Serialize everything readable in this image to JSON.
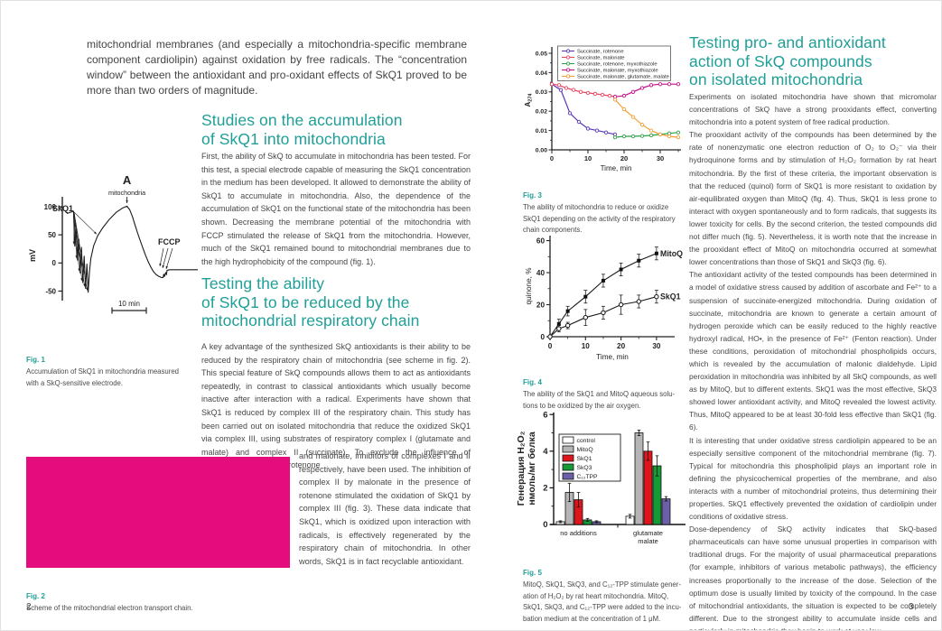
{
  "accent_teal": "#1f9f97",
  "fig2_pink": "#e50c7e",
  "left_page": {
    "intro": "mitochondrial membranes (and especially a mitochondria-specific membrane component cardiolipin) against oxidation by free radicals. The “concentration window” between the antioxidant and pro-oxidant effects of SkQ1 proved to be more than two orders of magnitude.",
    "section1_title": "Studies on the accumulation\nof SkQ1 into mitochondria",
    "section1_body": "First, the ability of SkQ to accumulate in mitochondria has been tested. For this test, a special electrode capable of measuring the SkQ1 concentration in the medium has been developed. It allowed to demonstrate the ability of SkQ1 to accumulate in mitochondria. Also, the dependence of the accumulation of SkQ1 on the functional state of the mitochondria has been shown. Decreasing the membrane potential of the mitochondria with FCCP stimulated the release of SkQ1 from the mitochondria. However, much of the SkQ1 remained bound to mitochondrial membranes due to the high hydrophobicity of the compound (fig. 1).",
    "section2_title": "Testing the ability\nof SkQ1 to be reduced by the\nmitochondrial respiratory chain",
    "section2_body_top": "A key advantage of the synthesized SkQ antioxidants is their ability to be reduced by the respiratory chain of mitochondria (see scheme in fig. 2). This special feature of SkQ compounds allows them to act as antioxidants repeatedly, in contrast to classical antioxidants which usually become inactive after interaction with a radical. Experiments have shown that SkQ1 is reduced by complex III of the respiratory chain. This study has been carried out on isolated mitochondria that reduce the oxidized SkQ1 via complex III, using substrates of respiratory complex I (glutamate and malate) and complex II (succinate). To exclude the influence of endogenous substrates rotenone",
    "section2_body_wrap": "and malonate, inhibitors of complexes I and II respectively, have been used. The inhibition of complex II by malonate in the presence of rotenone stimulated the oxidation of SkQ1 by complex III (fig. 3). These data indicate that SkQ1, which is oxidized upon interaction with radicals, is effectively regenerated by the respiratory chain of mitochondria. In other words, SkQ1 is in fact recyclable antioxidant.",
    "fig1_label": "Fig. 1",
    "fig1_caption": "Accumulation of SkQ1 in mitochondria measured\nwith a SkQ-sensitive electrode.",
    "fig2_label": "Fig. 2",
    "fig2_caption": "Scheme of the mitochondrial electron transport chain.",
    "page_number": "2"
  },
  "right_page": {
    "section3_title": "Testing pro- and antioxidant\naction of SkQ compounds\non isolated mitochondria",
    "section3_paragraphs": [
      "Experiments on isolated mitochondria have shown that micromolar concentrations of SkQ have a strong prooxidants effect, converting mitochondria into a potent system of free radical production.",
      "The prooxidant activity of the compounds has been determined by the rate of nonenzymatic one electron reduction of O₂ to O₂⁻ via their hydroquinone forms and by stimulation of H₂O₂ formation by rat heart mitochondria. By the first of these criteria, the important observation is that the reduced (quinol) form of SkQ1 is more resistant to oxidation by air-equilibrated oxygen than MitoQ (fig. 4). Thus, SkQ1 is less prone to interact with oxygen spontaneously and to form radicals, that suggests its lower toxicity for cells. By the second criterion, the tested compounds did not differ much (fig. 5). Nevertheless, it is worth note that the increase in the prooxidant effect of MitoQ on mitochondria occurred at somewhat lower concentrations than those of SkQ1 and SkQ3 (fig. 6).",
      "The antioxidant activity of the tested compounds has been determined in a model of oxidative stress caused by addition of ascorbate and Fe²⁺ to a suspension of succinate-energized mitochondria. During oxidation of succinate, mitochondria are known to generate a certain amount of hydrogen peroxide which can be easily reduced to the highly reactive hydroxyl radical, HO•, in the presence of Fe²⁺ (Fenton reaction). Under these conditions, peroxidation of mitochondrial phospholipids occurs, which is revealed by the accumulation of malonic dialdehyde. Lipid peroxidation in mitochondria was inhibited by all SkQ compounds, as well as by MitoQ, but to different extents. SkQ1 was the most effective, SkQ3 showed lower antioxidant activity, and MitoQ revealed the lowest activity. Thus, MitoQ appeared to be at least 30-fold less effective than SkQ1 (fig. 6).",
      "It is interesting that under oxidative stress cardiolipin appeared to be an especially sensitive component of the mitochondrial membrane (fig. 7). Typical for mitochondria this phospholipid plays an important role in defining the physicochemical properties of the membrane, and also interacts with a number of mitochondrial proteins, thus determining their properties. SkQ1 effectively prevented the oxidation of cardiolipin under conditions of oxidative stress.",
      "Dose-dependency of SkQ activity indicates that SkQ-based pharmaceuticals can have some unusual properties in comparison with traditional drugs. For the majority of usual pharmaceutical preparations (for example, inhibitors of various metabolic pathways), the efficiency increases proportionally to the increase of the dose. Selection of the optimum dose is usually limited by toxicity of the compound. In the case of mitochondrial antioxidants, the situation is expected to be completely different. Due to the strongest ability to accumulate inside cells and particularly in mitochondria they begin to work at very low"
    ],
    "fig3_label": "Fig. 3",
    "fig3_caption": "The ability of mitochondria to reduce or oxidize\nSkQ1 depending on the activity of the respiratory\nchain components.",
    "fig4_label": "Fig. 4",
    "fig4_caption": "The ability of the SkQ1 and MitoQ aqueous solu-\ntions to be oxidized by the air oxygen.",
    "fig5_label": "Fig. 5",
    "fig5_caption": "MitoQ, SkQ1, SkQ3, and C₁₂-TPP stimulate gener-\nation of H₂O₂ by rat heart mitochondria. MitoQ,\nSkQ1, SkQ3, and C₁₂-TPP were added to the incu-\nbation medium at the concentration of 1 μM.",
    "page_number": "3"
  },
  "chart_data": [
    {
      "id": "fig1",
      "type": "line",
      "panel_label": "A",
      "ylabel": "mV",
      "yticks": [
        100,
        50,
        0,
        -50
      ],
      "annotations": [
        "SkQ1",
        "mitochondria",
        "FCCP",
        "10 min"
      ],
      "trace_mV": [
        [
          2,
          88
        ],
        [
          7,
          92
        ],
        [
          8,
          30
        ],
        [
          9,
          60
        ],
        [
          10,
          5
        ],
        [
          11,
          42
        ],
        [
          12,
          -18
        ],
        [
          13,
          28
        ],
        [
          14,
          -35
        ],
        [
          15,
          12
        ],
        [
          16,
          -45
        ],
        [
          17,
          -2
        ],
        [
          18,
          -52
        ],
        [
          19,
          -15
        ],
        [
          20,
          8
        ],
        [
          22,
          30
        ],
        [
          25,
          48
        ],
        [
          29,
          63
        ],
        [
          34,
          78
        ],
        [
          39,
          90
        ],
        [
          44,
          98
        ],
        [
          47,
          101
        ],
        [
          49,
          95
        ],
        [
          51,
          83
        ],
        [
          53,
          68
        ],
        [
          55,
          53
        ],
        [
          57,
          39
        ],
        [
          59,
          26
        ],
        [
          61,
          13
        ],
        [
          63,
          2
        ],
        [
          65,
          -8
        ],
        [
          67,
          -16
        ],
        [
          69,
          -21
        ],
        [
          71,
          -24
        ],
        [
          73,
          -26
        ],
        [
          74,
          -26
        ],
        [
          74.5,
          -20
        ],
        [
          75,
          -24
        ],
        [
          76,
          -17
        ],
        [
          76.5,
          -21
        ],
        [
          77,
          -13
        ],
        [
          79,
          -12
        ],
        [
          100,
          -12
        ]
      ],
      "spike_tips_mV": [
        [
          8,
          30
        ],
        [
          10,
          5
        ],
        [
          12,
          -18
        ],
        [
          14,
          -35
        ],
        [
          16,
          -45
        ],
        [
          18,
          -52
        ],
        [
          25,
          48
        ]
      ],
      "mito_addition_x": 47
    },
    {
      "id": "fig3",
      "type": "line",
      "ylabel": "A274",
      "xlabel": "Time, min",
      "xticks": [
        0,
        10,
        20,
        30
      ],
      "yticks": [
        0,
        0.01,
        0.02,
        0.03,
        0.04,
        0.05
      ],
      "xlim": [
        0,
        35
      ],
      "ylim": [
        0,
        0.05
      ],
      "legend_position": "top",
      "series": [
        {
          "name": "Succinate, rotenone",
          "color": "#5a35b8",
          "x": [
            0,
            2.5,
            5,
            7.5,
            10,
            12.5,
            15,
            17.5
          ],
          "y": [
            0.034,
            0.031,
            0.019,
            0.0145,
            0.011,
            0.01,
            0.009,
            0.008
          ]
        },
        {
          "name": "Succinate, malonate",
          "color": "#e64560",
          "x": [
            0,
            2,
            4,
            6,
            8,
            10,
            12,
            14,
            16,
            17.5
          ],
          "y": [
            0.034,
            0.0335,
            0.032,
            0.031,
            0.03,
            0.0295,
            0.029,
            0.0285,
            0.028,
            0.0275
          ]
        },
        {
          "name": "Succinate, rotenone, myxothiazole",
          "color": "#2fa04a",
          "x": [
            17.5,
            20,
            22.5,
            25,
            27.5,
            30,
            32.5,
            35
          ],
          "y": [
            0.0065,
            0.007,
            0.007,
            0.0072,
            0.0075,
            0.008,
            0.0085,
            0.009
          ]
        },
        {
          "name": "Succinate, malonate, myxothiazole",
          "color": "#c2108c",
          "x": [
            17.5,
            20,
            22.5,
            25,
            27.5,
            30,
            32.5,
            35
          ],
          "y": [
            0.0275,
            0.028,
            0.03,
            0.032,
            0.0335,
            0.034,
            0.034,
            0.034
          ]
        },
        {
          "name": "Succinate, malonate, glutamate, malate",
          "color": "#f59e35",
          "x": [
            17.5,
            20,
            22.5,
            25,
            27.5,
            30,
            32.5,
            35
          ],
          "y": [
            0.026,
            0.021,
            0.017,
            0.013,
            0.01,
            0.008,
            0.007,
            0.0065
          ]
        }
      ]
    },
    {
      "id": "fig4",
      "type": "line",
      "ylabel": "quinone, %",
      "xlabel": "Time, min",
      "xticks": [
        0,
        10,
        20,
        30
      ],
      "yticks": [
        0,
        20,
        40,
        60
      ],
      "xlim": [
        0,
        33
      ],
      "ylim": [
        0,
        62
      ],
      "series": [
        {
          "name": "MitoQ",
          "marker": "filled-square",
          "x": [
            0,
            2.5,
            5,
            10,
            15,
            20,
            25,
            30
          ],
          "y": [
            0,
            8,
            16,
            25,
            35,
            42,
            47.5,
            52
          ],
          "err": [
            0,
            3,
            3,
            4,
            4,
            4,
            4,
            4
          ]
        },
        {
          "name": "SkQ1",
          "marker": "open-circle",
          "x": [
            0,
            2.5,
            5,
            10,
            15,
            20,
            25,
            30
          ],
          "y": [
            0,
            5,
            7,
            12,
            15,
            20,
            22,
            25
          ],
          "err": [
            0,
            2,
            2,
            5,
            4,
            6,
            4,
            4
          ]
        }
      ]
    },
    {
      "id": "fig5",
      "type": "bar",
      "ylabel_lines": [
        "Генерация H₂O₂",
        "нмоль/мг белка"
      ],
      "yticks": [
        0,
        2,
        4,
        6
      ],
      "ylim": [
        0,
        6.6
      ],
      "categories": [
        "no additions",
        "glutamate\nmalate"
      ],
      "series": [
        {
          "name": "control",
          "color": "#ffffff",
          "values": [
            0.15,
            0.45
          ],
          "err": [
            0.05,
            0.1
          ]
        },
        {
          "name": "MitoQ",
          "color": "#b5b5b5",
          "values": [
            1.75,
            5.0
          ],
          "err": [
            0.5,
            0.15
          ]
        },
        {
          "name": "SkQ1",
          "color": "#e0151c",
          "values": [
            1.35,
            4.0
          ],
          "err": [
            0.4,
            0.5
          ]
        },
        {
          "name": "SkQ3",
          "color": "#159a36",
          "values": [
            0.25,
            3.2
          ],
          "err": [
            0.08,
            0.55
          ]
        },
        {
          "name": "C₁₂TPP",
          "color": "#6b5fa8",
          "values": [
            0.15,
            1.4
          ],
          "err": [
            0.05,
            0.12
          ]
        }
      ]
    }
  ]
}
